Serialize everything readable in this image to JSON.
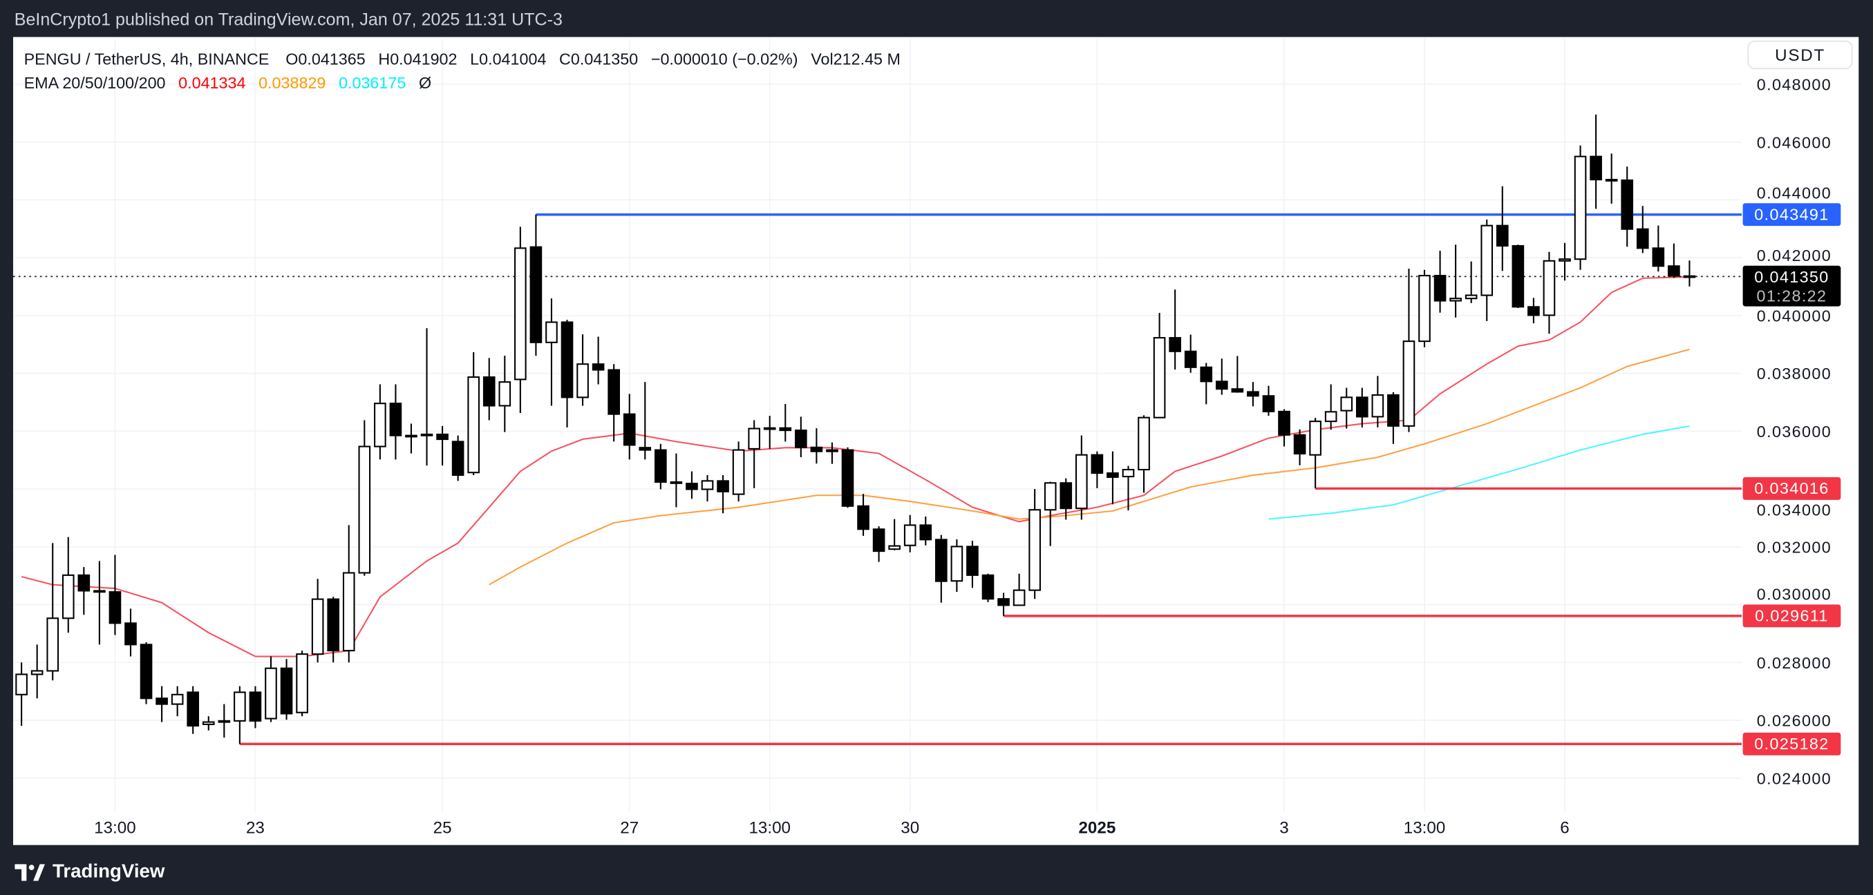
{
  "header": {
    "published": "BeInCrypto1 published on TradingView.com, Jan 07, 2025 11:31 UTC-3"
  },
  "legend": {
    "symbol": "PENGU / TetherUS, 4h, BINANCE",
    "o_label": "O",
    "o": "0.041365",
    "h_label": "H",
    "h": "0.041902",
    "l_label": "L",
    "l": "0.041004",
    "c_label": "C",
    "c": "0.041350",
    "change": "−0.000010 (−0.02%)",
    "vol_label": "Vol",
    "vol": "212.45 M",
    "ema_label": "EMA 20/50/100/200",
    "ema20": "0.041334",
    "ema50": "0.038829",
    "ema100": "0.036175",
    "ema200_icon": "Ø"
  },
  "currency_button": "USDT",
  "footer": {
    "brand": "TradingView",
    "logo_icon": "tradingview-logo-icon"
  },
  "colors": {
    "bull_fill": "#ffffff",
    "bear_fill": "#000000",
    "ema20": "#f7525f",
    "ema50": "#ffa040",
    "ema100": "#4df7ff",
    "resistance": "#2962ff",
    "support": "#f23645",
    "grid": "#f0f3fa"
  },
  "chart_data": {
    "type": "candlestick",
    "title": "",
    "ylim": [
      0.023,
      0.0485
    ],
    "grid": true,
    "y_ticks": [
      "0.048000",
      "0.046000",
      "0.044000",
      "0.042000",
      "0.040000",
      "0.038000",
      "0.036000",
      "0.034000",
      "0.032000",
      "0.030000",
      "0.028000",
      "0.026000",
      "0.024000"
    ],
    "x_ticks": [
      {
        "label": "13:00",
        "at_candle": 7
      },
      {
        "label": "23",
        "at_candle": 16
      },
      {
        "label": "25",
        "at_candle": 28
      },
      {
        "label": "27",
        "at_candle": 40
      },
      {
        "label": "13:00",
        "at_candle": 49
      },
      {
        "label": "30",
        "at_candle": 58
      },
      {
        "label": "2025",
        "at_candle": 70,
        "bold": true
      },
      {
        "label": "3",
        "at_candle": 82
      },
      {
        "label": "13:00",
        "at_candle": 91
      },
      {
        "label": "6",
        "at_candle": 100
      }
    ],
    "ohlc_fields": [
      "open",
      "high",
      "low",
      "close"
    ],
    "candles": [
      [
        0.02689,
        0.028,
        0.02581,
        0.02759
      ],
      [
        0.02759,
        0.02862,
        0.02676,
        0.02771
      ],
      [
        0.02771,
        0.03213,
        0.02738,
        0.02953
      ],
      [
        0.02953,
        0.03234,
        0.02903,
        0.03102
      ],
      [
        0.03102,
        0.0313,
        0.02965,
        0.03048
      ],
      [
        0.03048,
        0.03151,
        0.02862,
        0.03044
      ],
      [
        0.03044,
        0.03172,
        0.02895,
        0.02936
      ],
      [
        0.02936,
        0.02986,
        0.02821,
        0.02862
      ],
      [
        0.02862,
        0.0287,
        0.02656,
        0.02676
      ],
      [
        0.02676,
        0.02718,
        0.02594,
        0.02656
      ],
      [
        0.02656,
        0.02718,
        0.02614,
        0.02689
      ],
      [
        0.02697,
        0.02718,
        0.02553,
        0.02581
      ],
      [
        0.02586,
        0.02614,
        0.02565,
        0.02594
      ],
      [
        0.02598,
        0.02656,
        0.0254,
        0.02598
      ],
      [
        0.02598,
        0.02718,
        0.02518,
        0.02697
      ],
      [
        0.02697,
        0.02718,
        0.02573,
        0.02598
      ],
      [
        0.02606,
        0.02821,
        0.02594,
        0.0278
      ],
      [
        0.0278,
        0.02812,
        0.02602,
        0.02623
      ],
      [
        0.02627,
        0.02841,
        0.02614,
        0.02829
      ],
      [
        0.02829,
        0.03089,
        0.028,
        0.03019
      ],
      [
        0.03019,
        0.03027,
        0.028,
        0.02841
      ],
      [
        0.02841,
        0.03275,
        0.028,
        0.0311
      ],
      [
        0.0311,
        0.03638,
        0.031,
        0.03547
      ],
      [
        0.03547,
        0.03762,
        0.03502,
        0.03696
      ],
      [
        0.03696,
        0.03762,
        0.03502,
        0.03585
      ],
      [
        0.03585,
        0.03626,
        0.03523,
        0.03583
      ],
      [
        0.03589,
        0.03956,
        0.03481,
        0.03587
      ],
      [
        0.03589,
        0.03618,
        0.03481,
        0.03572
      ],
      [
        0.03564,
        0.03585,
        0.03428,
        0.03448
      ],
      [
        0.03457,
        0.03873,
        0.03448,
        0.03787
      ],
      [
        0.03787,
        0.03853,
        0.03638,
        0.03688
      ],
      [
        0.03688,
        0.03861,
        0.03597,
        0.0377
      ],
      [
        0.03779,
        0.04307,
        0.03663,
        0.04233
      ],
      [
        0.04237,
        0.04349,
        0.03861,
        0.03907
      ],
      [
        0.03907,
        0.04059,
        0.03688,
        0.03977
      ],
      [
        0.03977,
        0.03985,
        0.03613,
        0.03717
      ],
      [
        0.03717,
        0.03935,
        0.03688,
        0.03832
      ],
      [
        0.03832,
        0.03927,
        0.03762,
        0.03812
      ],
      [
        0.03812,
        0.03832,
        0.03564,
        0.03659
      ],
      [
        0.03659,
        0.03729,
        0.03502,
        0.03552
      ],
      [
        0.03543,
        0.0377,
        0.03502,
        0.03535
      ],
      [
        0.03535,
        0.03556,
        0.03399,
        0.03424
      ],
      [
        0.03424,
        0.03523,
        0.03337,
        0.03422
      ],
      [
        0.03419,
        0.03461,
        0.03366,
        0.03399
      ],
      [
        0.03399,
        0.03448,
        0.03357,
        0.03428
      ],
      [
        0.03428,
        0.03448,
        0.03316,
        0.03391
      ],
      [
        0.03382,
        0.03564,
        0.03357,
        0.03535
      ],
      [
        0.03539,
        0.03638,
        0.03403,
        0.03609
      ],
      [
        0.03609,
        0.03653,
        0.03539,
        0.03611
      ],
      [
        0.03611,
        0.03694,
        0.03564,
        0.03603
      ],
      [
        0.03603,
        0.0365,
        0.0351,
        0.03544
      ],
      [
        0.03544,
        0.0361,
        0.03488,
        0.0353
      ],
      [
        0.0353,
        0.03561,
        0.03487,
        0.03535
      ],
      [
        0.03535,
        0.03544,
        0.03335,
        0.03341
      ],
      [
        0.03341,
        0.03383,
        0.03238,
        0.03261
      ],
      [
        0.03261,
        0.03271,
        0.03148,
        0.03185
      ],
      [
        0.03192,
        0.03296,
        0.03188,
        0.03203
      ],
      [
        0.03205,
        0.0331,
        0.03181,
        0.03275
      ],
      [
        0.03275,
        0.03305,
        0.03205,
        0.03225
      ],
      [
        0.03225,
        0.03241,
        0.03007,
        0.03081
      ],
      [
        0.03082,
        0.03226,
        0.03044,
        0.03201
      ],
      [
        0.03201,
        0.03221,
        0.03058,
        0.03102
      ],
      [
        0.03102,
        0.03107,
        0.03009,
        0.0302
      ],
      [
        0.0302,
        0.03041,
        0.02961,
        0.02998
      ],
      [
        0.02998,
        0.03107,
        0.02996,
        0.0305
      ],
      [
        0.0305,
        0.034,
        0.0302,
        0.03328
      ],
      [
        0.03328,
        0.03425,
        0.03203,
        0.03421
      ],
      [
        0.03421,
        0.03437,
        0.03294,
        0.03333
      ],
      [
        0.03333,
        0.03585,
        0.03294,
        0.03518
      ],
      [
        0.03518,
        0.0353,
        0.03403,
        0.03455
      ],
      [
        0.03455,
        0.0353,
        0.03347,
        0.03441
      ],
      [
        0.03443,
        0.0348,
        0.03326,
        0.03467
      ],
      [
        0.03467,
        0.03655,
        0.03387,
        0.03647
      ],
      [
        0.03647,
        0.04009,
        0.03645,
        0.03923
      ],
      [
        0.03923,
        0.0409,
        0.03813,
        0.03876
      ],
      [
        0.03876,
        0.03934,
        0.03802,
        0.03821
      ],
      [
        0.03821,
        0.03836,
        0.03693,
        0.03772
      ],
      [
        0.03772,
        0.03851,
        0.03726,
        0.03746
      ],
      [
        0.03746,
        0.0386,
        0.03733,
        0.03736
      ],
      [
        0.03736,
        0.0377,
        0.03686,
        0.03722
      ],
      [
        0.03722,
        0.03757,
        0.03653,
        0.03668
      ],
      [
        0.03668,
        0.03676,
        0.03547,
        0.03587
      ],
      [
        0.03587,
        0.03606,
        0.03482,
        0.03522
      ],
      [
        0.03518,
        0.03646,
        0.03402,
        0.03634
      ],
      [
        0.03634,
        0.03762,
        0.03605,
        0.03667
      ],
      [
        0.03671,
        0.0375,
        0.03609,
        0.03717
      ],
      [
        0.03717,
        0.0375,
        0.03613,
        0.0365
      ],
      [
        0.0365,
        0.03791,
        0.03613,
        0.03725
      ],
      [
        0.03725,
        0.03735,
        0.03556,
        0.03618
      ],
      [
        0.03618,
        0.04162,
        0.03597,
        0.03911
      ],
      [
        0.03911,
        0.04158,
        0.0389,
        0.04138
      ],
      [
        0.04138,
        0.04224,
        0.0401,
        0.04051
      ],
      [
        0.04051,
        0.04245,
        0.03993,
        0.04059
      ],
      [
        0.04059,
        0.04187,
        0.04043,
        0.0407
      ],
      [
        0.0407,
        0.04332,
        0.03981,
        0.04311
      ],
      [
        0.04311,
        0.04447,
        0.04154,
        0.04241
      ],
      [
        0.04241,
        0.04245,
        0.04026,
        0.0403
      ],
      [
        0.0403,
        0.04061,
        0.03973,
        0.04001
      ],
      [
        0.04001,
        0.0422,
        0.03937,
        0.04189
      ],
      [
        0.04189,
        0.04251,
        0.04121,
        0.04195
      ],
      [
        0.04195,
        0.04588,
        0.04158,
        0.0455
      ],
      [
        0.0455,
        0.04695,
        0.04369,
        0.0447
      ],
      [
        0.0447,
        0.0456,
        0.04387,
        0.04468
      ],
      [
        0.04468,
        0.04515,
        0.04238,
        0.04299
      ],
      [
        0.04299,
        0.04379,
        0.04216,
        0.04233
      ],
      [
        0.04233,
        0.04311,
        0.04152,
        0.04171
      ],
      [
        0.04171,
        0.04249,
        0.0413,
        0.04137
      ],
      [
        0.041365,
        0.041902,
        0.041004,
        0.04135
      ]
    ],
    "ema_series": [
      {
        "name": "EMA 20",
        "color": "#f7525f",
        "points": [
          [
            1,
            0.03097
          ],
          [
            3,
            0.03069
          ],
          [
            7,
            0.03056
          ],
          [
            10,
            0.03007
          ],
          [
            13,
            0.02903
          ],
          [
            16,
            0.02821
          ],
          [
            19,
            0.02821
          ],
          [
            22,
            0.02841
          ],
          [
            24,
            0.03027
          ],
          [
            27,
            0.03151
          ],
          [
            29,
            0.03213
          ],
          [
            31,
            0.03337
          ],
          [
            33,
            0.03461
          ],
          [
            35,
            0.03531
          ],
          [
            37,
            0.03572
          ],
          [
            40,
            0.03593
          ],
          [
            43,
            0.03564
          ],
          [
            47,
            0.03531
          ],
          [
            50,
            0.03543
          ],
          [
            53,
            0.03543
          ],
          [
            56,
            0.03523
          ],
          [
            59,
            0.03432
          ],
          [
            62,
            0.03337
          ],
          [
            65,
            0.03287
          ],
          [
            67,
            0.03308
          ],
          [
            70,
            0.03337
          ],
          [
            73,
            0.03378
          ],
          [
            75,
            0.03461
          ],
          [
            78,
            0.03514
          ],
          [
            81,
            0.03576
          ],
          [
            84,
            0.03605
          ],
          [
            87,
            0.03626
          ],
          [
            90,
            0.03638
          ],
          [
            92,
            0.03729
          ],
          [
            95,
            0.03832
          ],
          [
            97,
            0.03894
          ],
          [
            99,
            0.03915
          ],
          [
            101,
            0.03977
          ],
          [
            103,
            0.0408
          ],
          [
            105,
            0.04129
          ],
          [
            108,
            0.041334
          ]
        ]
      },
      {
        "name": "EMA 50",
        "color": "#ffa040",
        "points": [
          [
            31,
            0.03069
          ],
          [
            33,
            0.0313
          ],
          [
            36,
            0.03213
          ],
          [
            39,
            0.03283
          ],
          [
            42,
            0.03308
          ],
          [
            47,
            0.03337
          ],
          [
            52,
            0.03378
          ],
          [
            55,
            0.03378
          ],
          [
            58,
            0.03357
          ],
          [
            62,
            0.03324
          ],
          [
            65,
            0.03296
          ],
          [
            68,
            0.03308
          ],
          [
            71,
            0.03324
          ],
          [
            73,
            0.03357
          ],
          [
            76,
            0.03407
          ],
          [
            80,
            0.03448
          ],
          [
            84,
            0.03473
          ],
          [
            88,
            0.0351
          ],
          [
            91,
            0.03556
          ],
          [
            95,
            0.03626
          ],
          [
            98,
            0.03688
          ],
          [
            101,
            0.0375
          ],
          [
            104,
            0.03824
          ],
          [
            108,
            0.038829
          ]
        ]
      },
      {
        "name": "EMA 100",
        "color": "#4df7ff",
        "points": [
          [
            81,
            0.03296
          ],
          [
            85,
            0.03316
          ],
          [
            89,
            0.03345
          ],
          [
            93,
            0.03407
          ],
          [
            97,
            0.03469
          ],
          [
            101,
            0.03535
          ],
          [
            105,
            0.03589
          ],
          [
            108,
            0.036175
          ]
        ]
      }
    ],
    "horizontal_levels": [
      {
        "value": 0.043491,
        "label": "0.043491",
        "color": "#2962ff",
        "from_candle": 34
      },
      {
        "value": 0.034016,
        "label": "0.034016",
        "color": "#f23645",
        "from_candle": 84
      },
      {
        "value": 0.029611,
        "label": "0.029611",
        "color": "#f23645",
        "from_candle": 64
      },
      {
        "value": 0.025182,
        "label": "0.025182",
        "color": "#f23645",
        "from_candle": 15
      }
    ],
    "last_price": {
      "value": 0.04135,
      "label": "0.041350",
      "countdown": "01:28:22"
    }
  }
}
